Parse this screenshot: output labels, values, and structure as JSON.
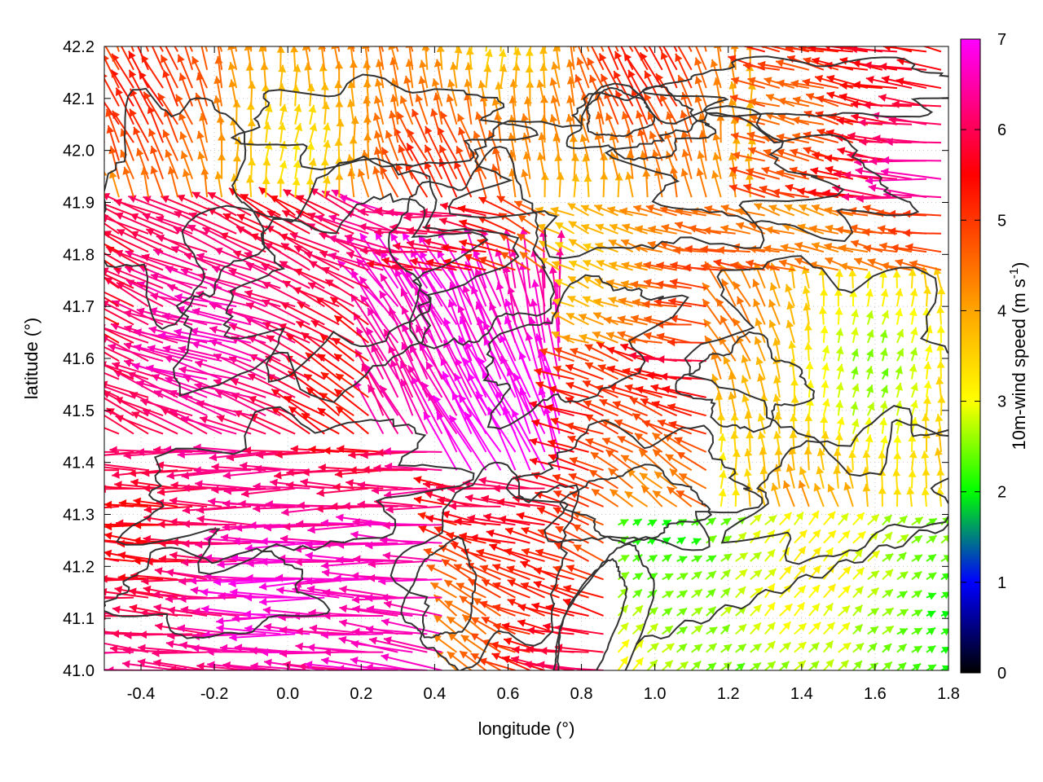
{
  "chart_data": {
    "type": "vector-field",
    "xlabel": "longitude (°)",
    "ylabel": "latitude (°)",
    "xlim": [
      -0.5,
      1.8
    ],
    "ylim": [
      41.0,
      42.2
    ],
    "xticks": [
      "-0.4",
      "-0.2",
      "0.0",
      "0.2",
      "0.4",
      "0.6",
      "0.8",
      "1.0",
      "1.2",
      "1.4",
      "1.6",
      "1.8"
    ],
    "xtick_values": [
      -0.4,
      -0.2,
      0.0,
      0.2,
      0.4,
      0.6,
      0.8,
      1.0,
      1.2,
      1.4,
      1.6,
      1.8
    ],
    "yticks": [
      "41.0",
      "41.1",
      "41.2",
      "41.3",
      "41.4",
      "41.5",
      "41.6",
      "41.7",
      "41.8",
      "41.9",
      "42.0",
      "42.1",
      "42.2"
    ],
    "ytick_values": [
      41.0,
      41.1,
      41.2,
      41.3,
      41.4,
      41.5,
      41.6,
      41.7,
      41.8,
      41.9,
      42.0,
      42.1,
      42.2
    ],
    "grid": true,
    "colorbar": {
      "label": "10m-wind speed (m s",
      "label_sup": "-1",
      "label_end": ")",
      "range": [
        0,
        7
      ],
      "ticks": [
        "0",
        "1",
        "2",
        "3",
        "4",
        "5",
        "6",
        "7"
      ],
      "tick_values": [
        0,
        1,
        2,
        3,
        4,
        5,
        6,
        7
      ],
      "palette": [
        "#000000",
        "#0000ff",
        "#00ff00",
        "#ffff00",
        "#ffa500",
        "#ff0000",
        "#ff00ff"
      ]
    },
    "contour_color": "#333333"
  }
}
